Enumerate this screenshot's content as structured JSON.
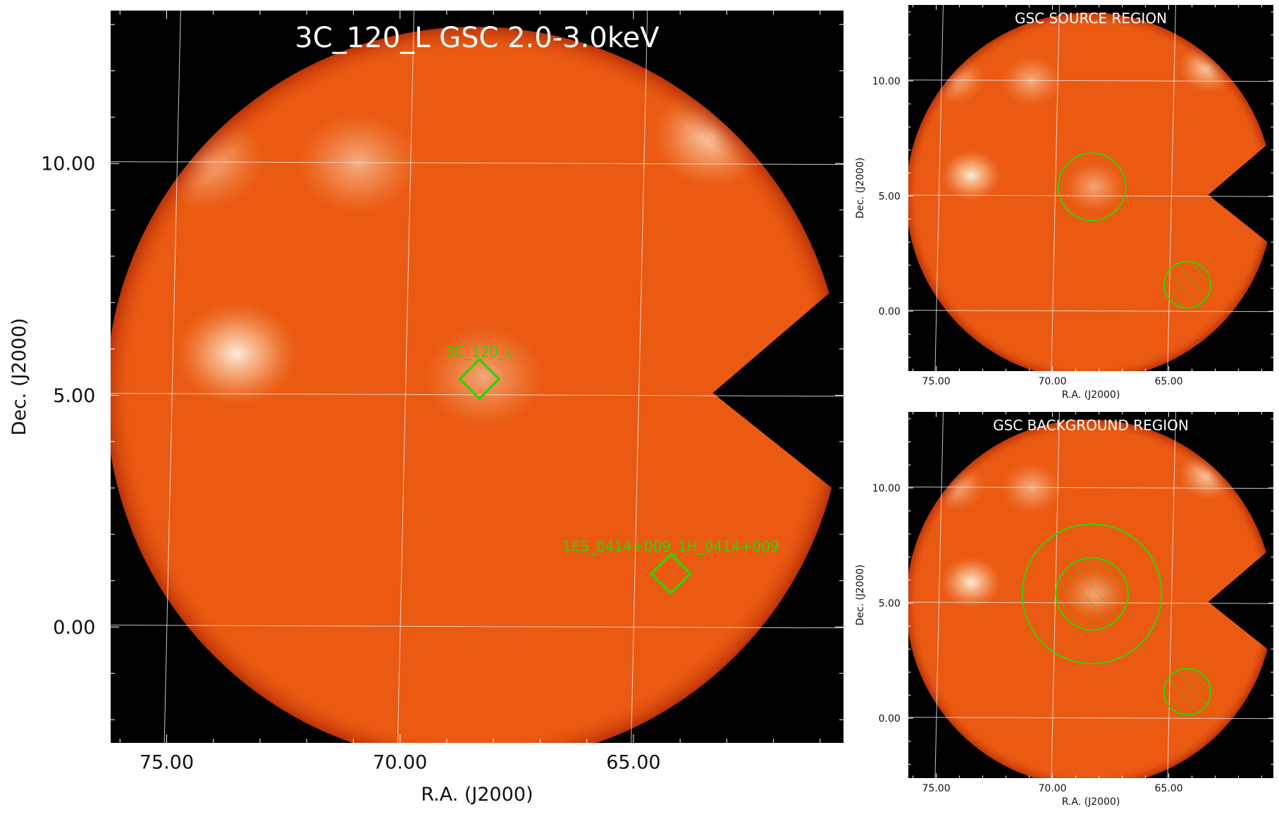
{
  "colors": {
    "image_bg": "#000000",
    "map_fill": "#ea5a12",
    "map_edge": "#b22a06",
    "grid": "#e8e8e8",
    "region": "#2fd400",
    "title_text": "#ffffff",
    "axis_text": "#111111"
  },
  "chart_data": [
    {
      "type": "heatmap",
      "panel": "main",
      "title": "3C_120_L GSC 2.0-3.0keV",
      "xlabel": "R.A. (J2000)",
      "ylabel": "Dec. (J2000)",
      "xlim": [
        76.2,
        60.5
      ],
      "ylim": [
        -2.5,
        13.3
      ],
      "x_ticks": [
        75.0,
        70.0,
        65.0
      ],
      "x_tick_labels": [
        "75.00",
        "70.00",
        "65.00"
      ],
      "y_ticks": [
        10.0,
        5.0,
        0.0
      ],
      "y_tick_labels": [
        "10.00",
        "5.00",
        "0.00"
      ],
      "grid": true,
      "field_of_view": {
        "ra": 68.4,
        "dec": 5.0,
        "radius": 7.9
      },
      "bright_spots": [
        {
          "ra": 73.5,
          "dec": 5.9,
          "intensity": 0.95
        },
        {
          "ra": 63.3,
          "dec": 10.6,
          "intensity": 0.8
        },
        {
          "ra": 74.2,
          "dec": 10.1,
          "intensity": 0.6
        },
        {
          "ra": 70.9,
          "dec": 10.0,
          "intensity": 0.55
        },
        {
          "ra": 68.2,
          "dec": 5.4,
          "intensity": 0.5
        }
      ],
      "sources": [
        {
          "label": "3C_120_L",
          "ra": 68.3,
          "dec": 5.35
        },
        {
          "label": "1ES_0414+009_1H_0414+009",
          "ra": 64.2,
          "dec": 1.15
        }
      ]
    },
    {
      "type": "heatmap",
      "panel": "source",
      "title": "GSC SOURCE REGION",
      "xlabel": "R.A. (J2000)",
      "ylabel": "Dec. (J2000)",
      "xlim": [
        76.2,
        60.5
      ],
      "ylim": [
        -2.6,
        13.3
      ],
      "x_ticks": [
        75.0,
        70.0,
        65.0
      ],
      "x_tick_labels": [
        "75.00",
        "70.00",
        "65.00"
      ],
      "y_ticks": [
        10.0,
        5.0,
        0.0
      ],
      "y_tick_labels": [
        "10.00",
        "5.00",
        "0.00"
      ],
      "grid": true,
      "regions": [
        {
          "shape": "circle",
          "ra": 68.3,
          "dec": 5.4,
          "radius": 1.45,
          "hatched": false
        },
        {
          "shape": "circle",
          "ra": 64.2,
          "dec": 1.15,
          "radius": 1.0,
          "hatched": true
        }
      ]
    },
    {
      "type": "heatmap",
      "panel": "background",
      "title": "GSC BACKGROUND REGION",
      "xlabel": "R.A. (J2000)",
      "ylabel": "Dec. (J2000)",
      "xlim": [
        76.2,
        60.5
      ],
      "ylim": [
        -2.6,
        13.3
      ],
      "x_ticks": [
        75.0,
        70.0,
        65.0
      ],
      "x_tick_labels": [
        "75.00",
        "70.00",
        "65.00"
      ],
      "y_ticks": [
        10.0,
        5.0,
        0.0
      ],
      "y_tick_labels": [
        "10.00",
        "5.00",
        "0.00"
      ],
      "grid": true,
      "regions": [
        {
          "shape": "circle",
          "ra": 68.3,
          "dec": 5.4,
          "radius": 3.0,
          "hatched": false
        },
        {
          "shape": "circle",
          "ra": 68.3,
          "dec": 5.4,
          "radius": 1.55,
          "hatched": true
        },
        {
          "shape": "circle",
          "ra": 64.2,
          "dec": 1.15,
          "radius": 1.0,
          "hatched": true
        }
      ]
    }
  ]
}
